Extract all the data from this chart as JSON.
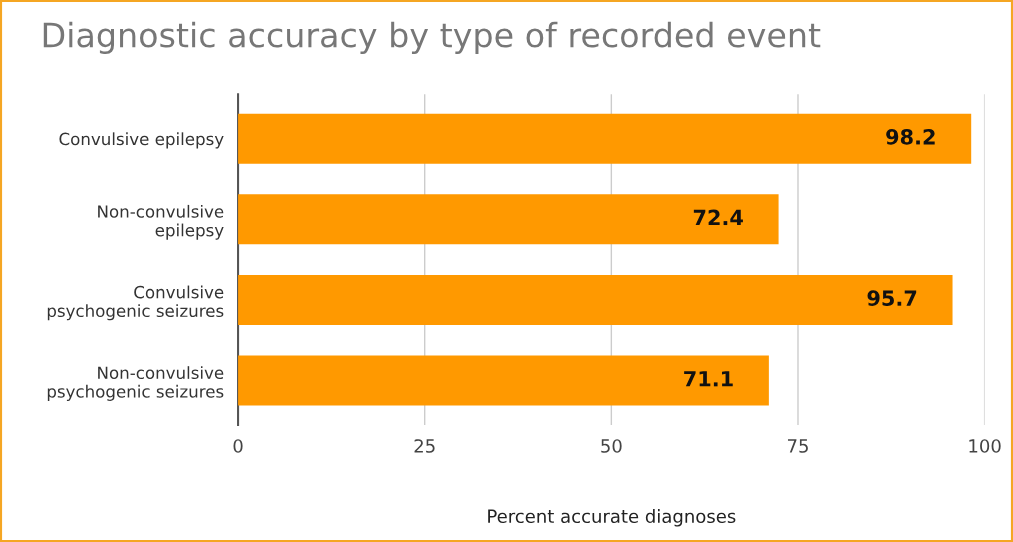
{
  "chart_data": {
    "type": "bar",
    "orientation": "horizontal",
    "title": "Diagnostic accuracy by type of recorded event",
    "xlabel": "Percent accurate diagnoses",
    "categories": [
      "Convulsive epilepsy",
      "Non-convulsive\nepilepsy",
      "Convulsive\npsychogenic seizures",
      "Non-convulsive\npsychogenic seizures"
    ],
    "values": [
      98.2,
      72.4,
      95.7,
      71.1
    ],
    "color": "#ff9900",
    "xlim": [
      0,
      100
    ],
    "xticks": [
      0,
      25,
      50,
      75,
      100
    ],
    "grid": "x",
    "data_labels": true
  }
}
